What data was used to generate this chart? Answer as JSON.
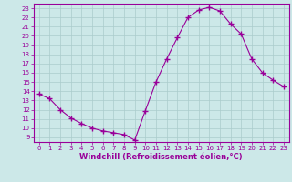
{
  "x": [
    0,
    1,
    2,
    3,
    4,
    5,
    6,
    7,
    8,
    9,
    10,
    11,
    12,
    13,
    14,
    15,
    16,
    17,
    18,
    19,
    20,
    21,
    22,
    23
  ],
  "y": [
    13.7,
    13.2,
    12.0,
    11.1,
    10.5,
    10.0,
    9.7,
    9.5,
    9.3,
    8.7,
    11.9,
    15.0,
    17.5,
    19.8,
    22.0,
    22.8,
    23.1,
    22.7,
    21.3,
    20.2,
    17.5,
    16.0,
    15.2,
    14.5
  ],
  "line_color": "#990099",
  "marker": "+",
  "markersize": 4,
  "bg_color": "#cce8e8",
  "grid_color": "#aacccc",
  "xlabel": "Windchill (Refroidissement éolien,°C)",
  "ylabel": "",
  "xlim": [
    -0.5,
    23.5
  ],
  "ylim": [
    8.5,
    23.5
  ],
  "xticks": [
    0,
    1,
    2,
    3,
    4,
    5,
    6,
    7,
    8,
    9,
    10,
    11,
    12,
    13,
    14,
    15,
    16,
    17,
    18,
    19,
    20,
    21,
    22,
    23
  ],
  "yticks": [
    9,
    10,
    11,
    12,
    13,
    14,
    15,
    16,
    17,
    18,
    19,
    20,
    21,
    22,
    23
  ],
  "tick_fontsize": 5.0,
  "label_fontsize": 6.0,
  "linewidth": 0.8
}
